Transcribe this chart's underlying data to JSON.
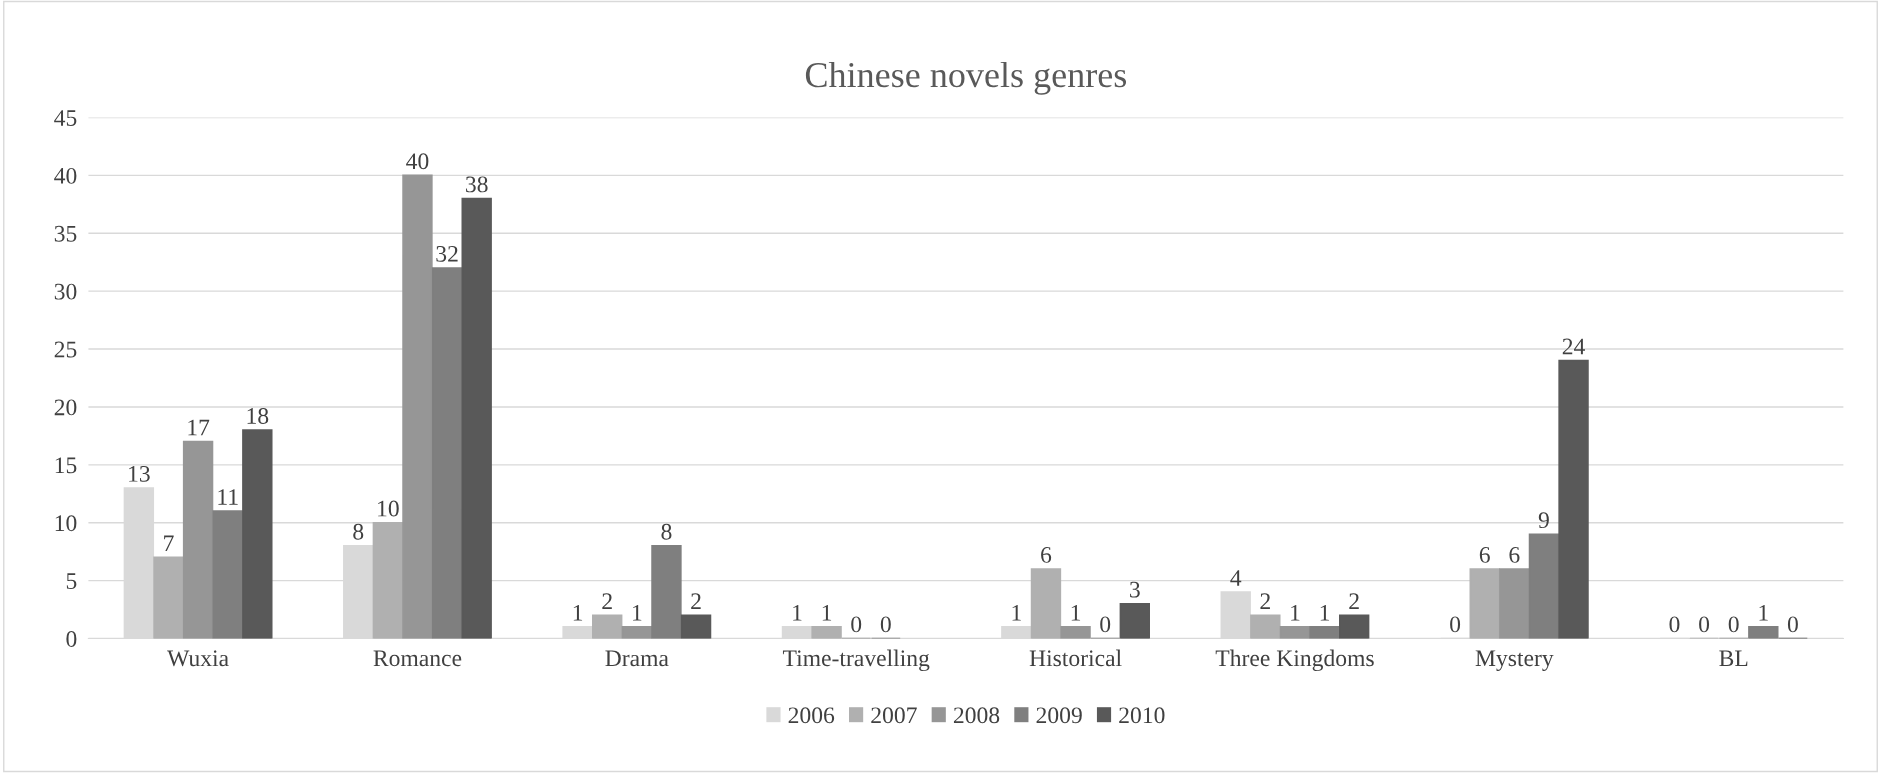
{
  "chart_data": {
    "type": "bar",
    "title": "Chinese novels genres",
    "categories": [
      "Wuxia",
      "Romance",
      "Drama",
      "Time-travelling",
      "Historical",
      "Three Kingdoms",
      "Mystery",
      "BL"
    ],
    "series": [
      {
        "name": "2006",
        "color": "#d9d9d9",
        "values": [
          13,
          8,
          1,
          1,
          1,
          4,
          0,
          0
        ]
      },
      {
        "name": "2007",
        "color": "#b0b0b0",
        "values": [
          7,
          10,
          2,
          1,
          6,
          2,
          6,
          0
        ]
      },
      {
        "name": "2008",
        "color": "#969696",
        "values": [
          17,
          40,
          1,
          0,
          1,
          1,
          6,
          0
        ]
      },
      {
        "name": "2009",
        "color": "#7f7f7f",
        "values": [
          11,
          32,
          8,
          0,
          0,
          1,
          9,
          1
        ]
      },
      {
        "name": "2010",
        "color": "#595959",
        "values": [
          18,
          38,
          2,
          null,
          3,
          2,
          24,
          0
        ]
      }
    ],
    "ylim": [
      0,
      45
    ],
    "yticks": [
      0,
      5,
      10,
      15,
      20,
      25,
      30,
      35,
      40,
      45
    ],
    "grid": "y",
    "legend": "bottom",
    "data_labels": true
  }
}
